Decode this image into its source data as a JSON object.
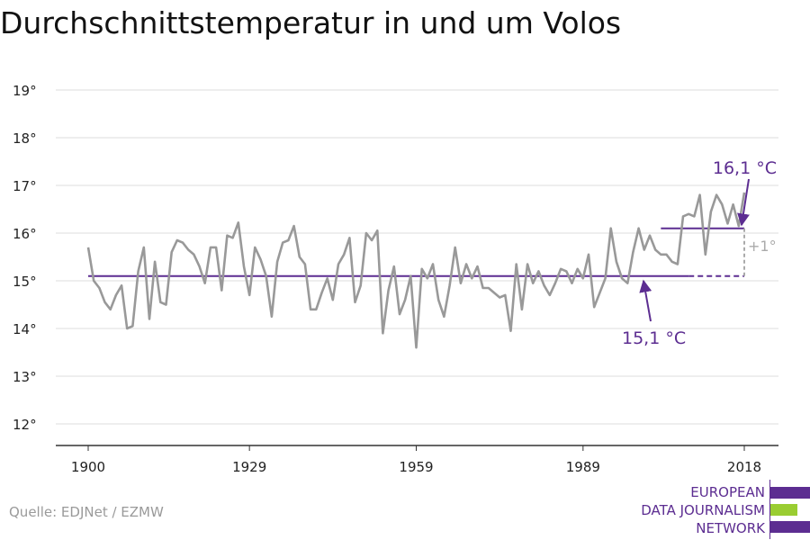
{
  "title": "Durchschnittstemperatur in und um Volos",
  "source": "Quelle: EDJNet / EZMW",
  "logo": {
    "lines": [
      "EUROPEAN",
      "DATA JOURNALISM",
      "NETWORK"
    ],
    "colors": {
      "purple": "#5c2d91",
      "green": "#9acd32"
    }
  },
  "colors": {
    "series": "#999999",
    "reference": "#5c2d91",
    "difference": "#aaaaaa",
    "grid": "#dddddd",
    "axis": "#333333"
  },
  "chart_data": {
    "type": "line",
    "title": "Durchschnittstemperatur in und um Volos",
    "xlabel": "",
    "ylabel": "",
    "xlim": [
      1900,
      2018
    ],
    "ylim": [
      11.5,
      19.3
    ],
    "x_ticks": [
      1900,
      1929,
      1959,
      1989,
      2018
    ],
    "x_tick_labels": [
      "1900",
      "1929",
      "1959",
      "1989",
      "2018"
    ],
    "y_ticks": [
      12,
      13,
      14,
      15,
      16,
      17,
      18,
      19
    ],
    "y_tick_labels": [
      "12°",
      "13°",
      "14°",
      "15°",
      "16°",
      "17°",
      "18°",
      "19°"
    ],
    "grid": true,
    "series": [
      {
        "x": [
          1900,
          1901,
          1902,
          1903,
          1904,
          1905,
          1906,
          1907,
          1908,
          1909,
          1910,
          1911,
          1912,
          1913,
          1914,
          1915,
          1916,
          1917,
          1918,
          1919,
          1920,
          1921,
          1922,
          1923,
          1924,
          1925,
          1926,
          1927,
          1928,
          1929,
          1930,
          1931,
          1932,
          1933,
          1934,
          1935,
          1936,
          1937,
          1938,
          1939,
          1940,
          1941,
          1942,
          1943,
          1944,
          1945,
          1946,
          1947,
          1948,
          1949,
          1950,
          1951,
          1952,
          1953,
          1954,
          1955,
          1956,
          1957,
          1958,
          1959,
          1960,
          1961,
          1962,
          1963,
          1964,
          1965,
          1966,
          1967,
          1968,
          1969,
          1970,
          1971,
          1972,
          1973,
          1974,
          1975,
          1976,
          1977,
          1978,
          1979,
          1980,
          1981,
          1982,
          1983,
          1984,
          1985,
          1986,
          1987,
          1988,
          1989,
          1990,
          1991,
          1992,
          1993,
          1994,
          1995,
          1996,
          1997,
          1998,
          1999,
          2000,
          2001,
          2002,
          2003,
          2004,
          2005,
          2006,
          2007,
          2008,
          2009,
          2010,
          2011,
          2012,
          2013,
          2014,
          2015,
          2016,
          2017,
          2018
        ],
        "values": [
          15.7,
          15.0,
          14.85,
          14.55,
          14.4,
          14.7,
          14.9,
          14.0,
          14.05,
          15.2,
          15.7,
          14.2,
          15.4,
          14.55,
          14.5,
          15.6,
          15.85,
          15.8,
          15.65,
          15.55,
          15.3,
          14.95,
          15.7,
          15.7,
          14.8,
          15.95,
          15.9,
          16.22,
          15.3,
          14.7,
          15.7,
          15.45,
          15.1,
          14.25,
          15.4,
          15.8,
          15.85,
          16.15,
          15.5,
          15.35,
          14.4,
          14.4,
          14.75,
          15.05,
          14.6,
          15.35,
          15.55,
          15.9,
          14.55,
          14.9,
          16.0,
          15.85,
          16.05,
          13.9,
          14.8,
          15.3,
          14.3,
          14.6,
          15.1,
          13.6,
          15.25,
          15.05,
          15.35,
          14.6,
          14.25,
          14.9,
          15.7,
          14.95,
          15.35,
          15.05,
          15.3,
          14.85,
          14.85,
          14.75,
          14.65,
          14.7,
          13.95,
          15.35,
          14.4,
          15.35,
          14.95,
          15.2,
          14.9,
          14.7,
          14.95,
          15.25,
          15.2,
          14.95,
          15.25,
          15.05,
          15.55,
          14.45,
          14.75,
          15.05,
          16.1,
          15.4,
          15.05,
          14.95,
          15.6,
          16.1,
          15.65,
          15.95,
          15.65,
          15.55,
          15.55,
          15.4,
          15.35,
          16.35,
          16.4,
          16.35,
          16.8,
          15.55,
          16.45,
          16.8,
          16.6,
          16.2,
          16.6,
          16.15,
          16.85
        ]
      }
    ],
    "reference_lines": [
      {
        "label": "15,1 °C",
        "value": 15.1,
        "x_start": 1900,
        "x_end": 2008,
        "dashed_x_end": 2018
      },
      {
        "label": "16,1 °C",
        "value": 16.1,
        "x_start": 2003,
        "x_end": 2018
      }
    ],
    "difference": {
      "label": "+1°",
      "x": 2018,
      "from": 15.1,
      "to": 16.1
    }
  }
}
